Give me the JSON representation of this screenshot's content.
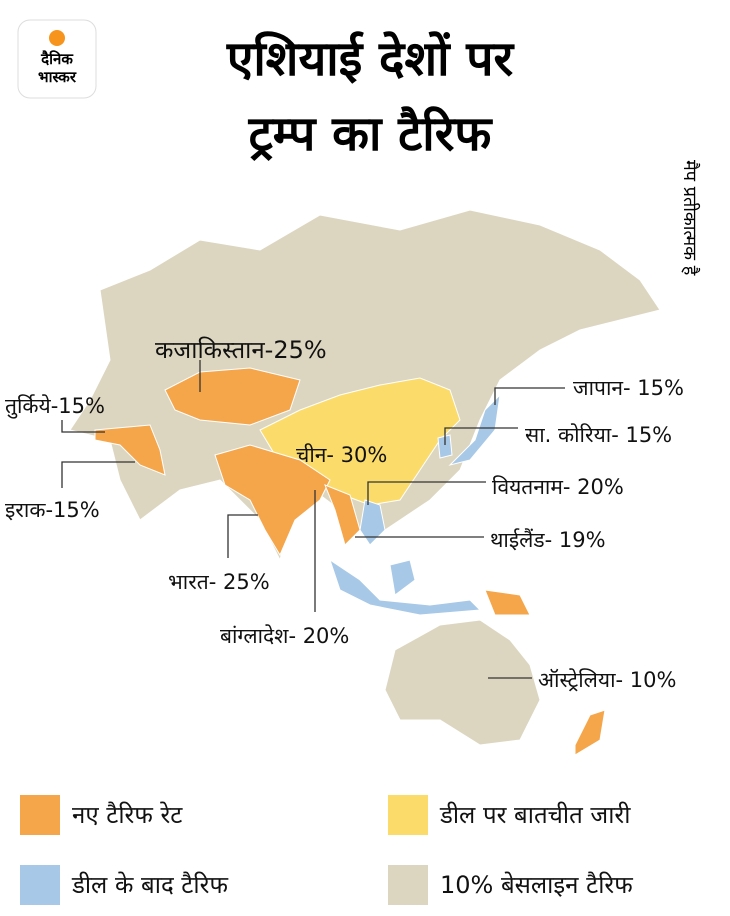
{
  "logo": {
    "line1": "दैनिक",
    "line2": "भास्कर"
  },
  "title": {
    "line1": "एशियाई देशों पर",
    "line2": "ट्रम्प का टैरिफ"
  },
  "note": "मैप प्रतीकात्मक है",
  "labels": [
    "कजाकिस्तान-25%",
    "तुर्किये-15%",
    "इराक-15%",
    "चीन- 30%",
    "जापान- 15%",
    "सा. कोरिया- 15%",
    "वियतनाम- 20%",
    "थाईलैंड- 19%",
    "भारत- 25%",
    "बांग्लादेश- 20%",
    "ऑस्ट्रेलिया- 10%"
  ],
  "legend": [
    {
      "label": "नए टैरिफ रेट",
      "color": "#f5a54a"
    },
    {
      "label": "डील पर बातचीत जारी",
      "color": "#fbdc6a"
    },
    {
      "label": "डील के बाद टैरिफ",
      "color": "#a7c8e6"
    },
    {
      "label": "10% बेसलाइन टैरिफ",
      "color": "#dcd6c0"
    }
  ]
}
